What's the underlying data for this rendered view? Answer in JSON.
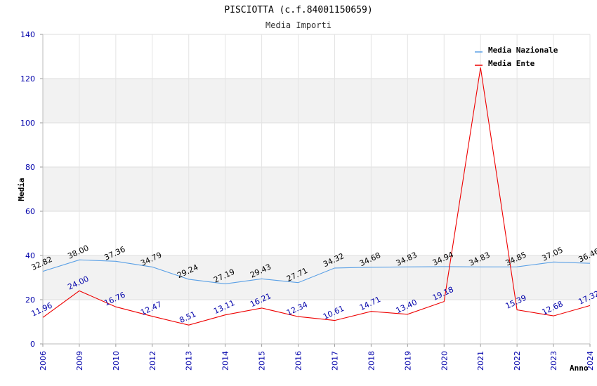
{
  "chart_data": {
    "type": "line",
    "title": "PISCIOTTA (c.f.84001150659)",
    "subtitle": "Media Importi",
    "xlabel": "Anno",
    "ylabel": "Media",
    "ylim": [
      0,
      140
    ],
    "yticks": [
      "0",
      "20",
      "40",
      "60",
      "80",
      "100",
      "120",
      "140"
    ],
    "categories": [
      "2006",
      "2009",
      "2010",
      "2012",
      "2013",
      "2014",
      "2015",
      "2016",
      "2017",
      "2018",
      "2019",
      "2020",
      "2021",
      "2022",
      "2023",
      "2024"
    ],
    "grid": true,
    "legend_position": "top-right",
    "series": [
      {
        "name": "Media Nazionale",
        "color": "#5aa0e6",
        "values": [
          32.82,
          38.0,
          37.36,
          34.79,
          29.24,
          27.19,
          29.43,
          27.71,
          34.32,
          34.68,
          34.83,
          34.94,
          34.83,
          34.85,
          37.05,
          36.46
        ],
        "labels": [
          "32.82",
          "38.00",
          "37.36",
          "34.79",
          "29.24",
          "27.19",
          "29.43",
          "27.71",
          "34.32",
          "34.68",
          "34.83",
          "34.94",
          "34.83",
          "34.85",
          "37.05",
          "36.46"
        ]
      },
      {
        "name": "Media Ente",
        "color": "#ee0000",
        "values": [
          11.96,
          24.0,
          16.76,
          12.47,
          8.51,
          13.11,
          16.21,
          12.34,
          10.61,
          14.71,
          13.4,
          19.18,
          125.0,
          15.39,
          12.68,
          17.32
        ],
        "labels": [
          "11.96",
          "24.00",
          "16.76",
          "12.47",
          "8.51",
          "13.11",
          "16.21",
          "12.34",
          "10.61",
          "14.71",
          "13.40",
          "19.18",
          "",
          "15.39",
          "12.68",
          "17.32"
        ]
      }
    ]
  }
}
